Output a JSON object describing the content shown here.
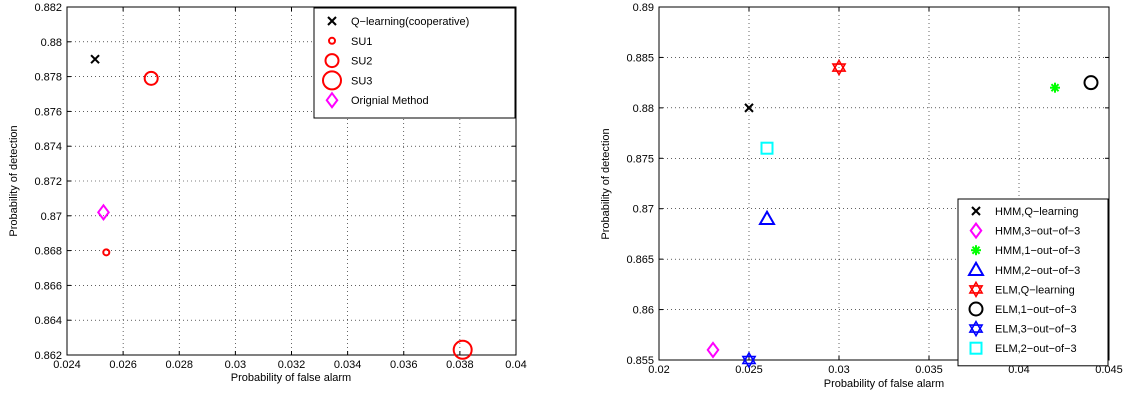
{
  "chart_data": [
    {
      "type": "scatter",
      "xlabel": "Probability of false alarm",
      "ylabel": "Probability of detection",
      "xlim": [
        0.024,
        0.04
      ],
      "ylim": [
        0.862,
        0.882
      ],
      "xticks": [
        "0.024",
        "0.026",
        "0.028",
        "0.03",
        "0.032",
        "0.034",
        "0.036",
        "0.038",
        "0.04"
      ],
      "yticks": [
        "0.862",
        "0.864",
        "0.866",
        "0.868",
        "0.87",
        "0.872",
        "0.874",
        "0.876",
        "0.878",
        "0.88",
        "0.882"
      ],
      "grid": true,
      "legend_position": "top-right",
      "series": [
        {
          "name": "Q−learning(cooperative)",
          "marker": "x",
          "color": "#000000",
          "size": 4,
          "x": [
            0.025
          ],
          "y": [
            0.879
          ]
        },
        {
          "name": "SU1",
          "marker": "circle",
          "color": "#ff0000",
          "size": 3,
          "x": [
            0.0254
          ],
          "y": [
            0.8679
          ]
        },
        {
          "name": "SU2",
          "marker": "circle",
          "color": "#ff0000",
          "size": 6.5,
          "x": [
            0.027
          ],
          "y": [
            0.8779
          ]
        },
        {
          "name": "SU3",
          "marker": "circle",
          "color": "#ff0000",
          "size": 9,
          "x": [
            0.0381
          ],
          "y": [
            0.8623
          ]
        },
        {
          "name": "Orignial Method",
          "marker": "diamond",
          "color": "#ff00ff",
          "size": 7,
          "x": [
            0.0253
          ],
          "y": [
            0.8702
          ]
        }
      ]
    },
    {
      "type": "scatter",
      "xlabel": "Probability of false alarm",
      "ylabel": "Probability of detection",
      "xlim": [
        0.02,
        0.045
      ],
      "ylim": [
        0.855,
        0.89
      ],
      "xticks": [
        "0.02",
        "0.025",
        "0.03",
        "0.035",
        "0.04",
        "0.045"
      ],
      "yticks": [
        "0.855",
        "0.86",
        "0.865",
        "0.87",
        "0.875",
        "0.88",
        "0.885",
        "0.89"
      ],
      "grid": true,
      "legend_position": "bottom-right",
      "series": [
        {
          "name": "HMM,Q−learning",
          "marker": "x",
          "color": "#000000",
          "size": 4,
          "x": [
            0.025
          ],
          "y": [
            0.88
          ]
        },
        {
          "name": "HMM,3−out−of−3",
          "marker": "diamond",
          "color": "#ff00ff",
          "size": 7,
          "x": [
            0.023
          ],
          "y": [
            0.856
          ]
        },
        {
          "name": "HMM,1−out−of−3",
          "marker": "asterisk",
          "color": "#00ff00",
          "size": 5,
          "x": [
            0.042
          ],
          "y": [
            0.882
          ]
        },
        {
          "name": "HMM,2−out−of−3",
          "marker": "triangle",
          "color": "#0000ff",
          "size": 7,
          "x": [
            0.026
          ],
          "y": [
            0.869
          ]
        },
        {
          "name": "ELM,Q−learning",
          "marker": "hexagram",
          "color": "#ff0000",
          "size": 7,
          "x": [
            0.03
          ],
          "y": [
            0.884
          ]
        },
        {
          "name": "ELM,1−out−of−3",
          "marker": "circle",
          "color": "#000000",
          "size": 6.5,
          "x": [
            0.044
          ],
          "y": [
            0.8825
          ]
        },
        {
          "name": "ELM,3−out−of−3",
          "marker": "hexagram",
          "color": "#0000ff",
          "size": 7,
          "x": [
            0.025
          ],
          "y": [
            0.855
          ]
        },
        {
          "name": "ELM,2−out−of−3",
          "marker": "square",
          "color": "#00ffff",
          "size": 5.5,
          "x": [
            0.026
          ],
          "y": [
            0.876
          ]
        }
      ]
    }
  ]
}
